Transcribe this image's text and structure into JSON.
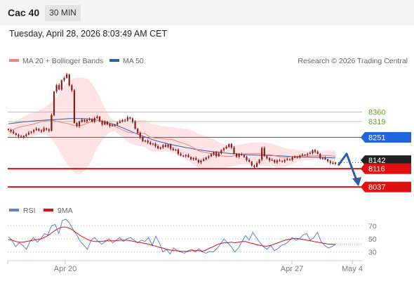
{
  "header": {
    "instrument": "Cac 40",
    "timeframe": "30 MIN",
    "datetime": "Tuesday, April 28, 2026 8:03:49 AM CET"
  },
  "legend": {
    "ma20": "MA 20 + Bollinger Bands",
    "ma50": "MA 50",
    "rsi": "RSI",
    "rsi_ma": "9MA"
  },
  "attribution": "Research © 2026 Trading Central",
  "colors": {
    "ma20": "#f08080",
    "ma50": "#3060a8",
    "bollinger_fill": "#fde3e3",
    "candle": "#8b1a1a",
    "resistance_green": "#a8d080",
    "pivot_blue": "#1f66e0",
    "support_red": "#e01010",
    "arrow": "#2b5da8",
    "last_price": "#222222"
  },
  "chart_data": [
    {
      "type": "line",
      "title": "",
      "x_ticks": [
        "Apr 20",
        "Apr 27",
        "May 4"
      ],
      "ylim": [
        7980,
        8540
      ],
      "levels": [
        {
          "value": 8360,
          "label": "8360",
          "kind": "resistance"
        },
        {
          "value": 8319,
          "label": "8319",
          "kind": "resistance"
        },
        {
          "value": 8251,
          "label": "8251",
          "kind": "pivot"
        },
        {
          "value": 8116,
          "label": "8116",
          "kind": "support"
        },
        {
          "value": 8037,
          "label": "8037",
          "kind": "support"
        }
      ],
      "last_price": {
        "value": 8142,
        "label": "8142"
      },
      "projection": {
        "from": 8142,
        "via": 8180,
        "to": 8037
      },
      "series": [
        {
          "name": "Cac 40",
          "values": [
            8283,
            8276,
            8268,
            8262,
            8255,
            8251,
            8257,
            8263,
            8271,
            8275,
            8282,
            8288,
            8281,
            8277,
            8290,
            8285,
            8279,
            8347,
            8448,
            8476,
            8457,
            8497,
            8507,
            8522,
            8475,
            8453,
            8313,
            8299,
            8318,
            8327,
            8320,
            8326,
            8330,
            8319,
            8334,
            8340,
            8321,
            8306,
            8318,
            8307,
            8300,
            8302,
            8306,
            8314,
            8320,
            8326,
            8323,
            8337,
            8332,
            8318,
            8288,
            8271,
            8250,
            8234,
            8237,
            8229,
            8221,
            8224,
            8213,
            8203,
            8208,
            8217,
            8210,
            8219,
            8202,
            8196,
            8198,
            8180,
            8172,
            8170,
            8174,
            8166,
            8157,
            8161,
            8154,
            8143,
            8150,
            8156,
            8164,
            8169,
            8177,
            8187,
            8170,
            8182,
            8196,
            8203,
            8210,
            8222,
            8207,
            8180,
            8167,
            8178,
            8174,
            8167,
            8153,
            8146,
            8129,
            8124,
            8140,
            8155,
            8205,
            8170,
            8161,
            8152,
            8153,
            8143,
            8151,
            8149,
            8147,
            8153,
            8157,
            8154,
            8166,
            8164,
            8166,
            8172,
            8176,
            8176,
            8180,
            8183,
            8196,
            8189,
            8180,
            8161,
            8162,
            8156,
            8148,
            8141,
            8137,
            8142
          ]
        },
        {
          "name": "MA 20",
          "values": [
            8274,
            8286,
            8295,
            8300,
            8305,
            8310,
            8318,
            8323,
            8325,
            8318,
            8314,
            8310,
            8302,
            8300,
            8307,
            8317,
            8325,
            8322,
            8311,
            8304,
            8293,
            8282,
            8272,
            8270,
            8270,
            8268,
            8252,
            8248,
            8245,
            8243,
            8242,
            8233,
            8226,
            8218,
            8206,
            8191,
            8187,
            8182,
            8177,
            8171,
            8169,
            8170,
            8174,
            8179,
            8181,
            8181,
            8181,
            8178,
            8176,
            8171,
            8165,
            8164,
            8168,
            8170,
            8172,
            8171,
            8172,
            8172,
            8173,
            8172,
            8169
          ]
        },
        {
          "name": "MA 50",
          "values": [
            8309,
            8312,
            8315,
            8318,
            8320,
            8323,
            8324,
            8326,
            8327,
            8328,
            8330,
            8332,
            8332,
            8332,
            8331,
            8329,
            8325,
            8320,
            8314,
            8307,
            8298,
            8288,
            8278,
            8268,
            8258,
            8250,
            8241,
            8234,
            8228,
            8222,
            8217,
            8212,
            8207,
            8203,
            8198,
            8195,
            8192,
            8189,
            8187,
            8184,
            8181,
            8180,
            8178,
            8176,
            8175,
            8174,
            8173,
            8173,
            8172,
            8171,
            8170,
            8168,
            8167,
            8166,
            8166,
            8165,
            8165,
            8164,
            8163,
            8162
          ]
        }
      ]
    },
    {
      "type": "line",
      "title": "",
      "ylim": [
        20,
        80
      ],
      "y_ticks": [
        70,
        50,
        30
      ],
      "series": [
        {
          "name": "RSI",
          "values": [
            53,
            48,
            38,
            44,
            40,
            34,
            46,
            52,
            45,
            50,
            58,
            56,
            70,
            72,
            58,
            78,
            80,
            74,
            64,
            56,
            46,
            40,
            34,
            48,
            52,
            46,
            42,
            46,
            50,
            44,
            48,
            52,
            46,
            50,
            52,
            48,
            44,
            48,
            46,
            52,
            40,
            54,
            44,
            30,
            34,
            27,
            36,
            32,
            30,
            28,
            32,
            34,
            30,
            35,
            30,
            28,
            31,
            30,
            35,
            42,
            50,
            44,
            38,
            30,
            36,
            46,
            55,
            48,
            60,
            52,
            44,
            38,
            34,
            40,
            32,
            35,
            40,
            42,
            46,
            52,
            48,
            50,
            56,
            58,
            48,
            52,
            60,
            46,
            40,
            36,
            38,
            42
          ]
        },
        {
          "name": "9MA",
          "values": [
            49,
            48,
            46,
            45,
            45,
            46,
            47,
            48,
            49,
            50,
            52,
            55,
            59,
            63,
            66,
            68,
            68,
            66,
            63,
            59,
            55,
            52,
            49,
            47,
            46,
            46,
            46,
            47,
            47,
            47,
            47,
            48,
            48,
            48,
            47,
            46,
            45,
            44,
            43,
            42,
            40,
            39,
            37,
            36,
            34,
            33,
            32,
            32,
            31,
            31,
            31,
            32,
            32,
            32,
            31,
            33,
            36,
            38,
            41,
            43,
            44,
            44,
            45,
            44,
            45,
            46,
            46,
            44,
            43,
            41,
            40,
            39,
            39,
            40,
            42,
            44,
            46,
            48,
            49,
            50,
            51,
            50,
            49,
            48,
            47,
            46,
            45,
            44,
            43,
            42,
            42,
            41
          ]
        }
      ]
    }
  ]
}
